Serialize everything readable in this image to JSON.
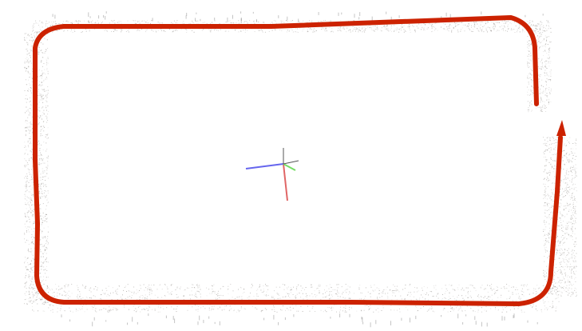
{
  "scene": {
    "background": "#ffffff",
    "trajectory_color": "#cc2200",
    "point_cloud_color": "#8a8580",
    "axes": {
      "x_color": "#e06666",
      "y_color": "#77dd66",
      "z_color": "#6666ee",
      "w_color": "#555555"
    }
  }
}
